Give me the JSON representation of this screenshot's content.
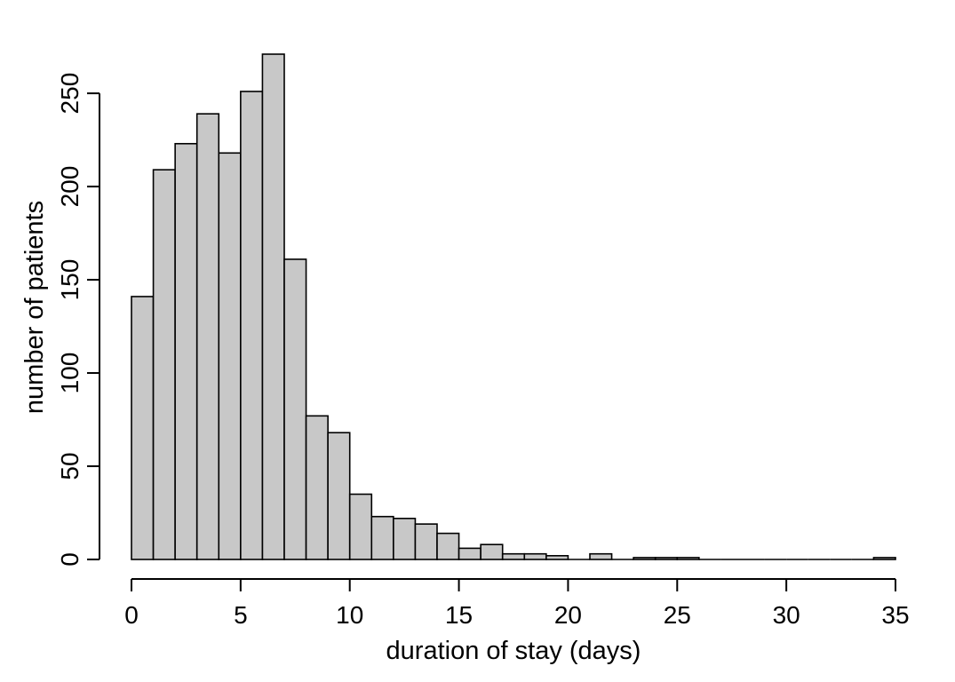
{
  "chart_data": {
    "type": "bar",
    "title": "",
    "xlabel": "duration of stay (days)",
    "ylabel": "number of patients",
    "bin_width": 1,
    "bin_starts": [
      0,
      1,
      2,
      3,
      4,
      5,
      6,
      7,
      8,
      9,
      10,
      11,
      12,
      13,
      14,
      15,
      16,
      17,
      18,
      19,
      20,
      21,
      22,
      23,
      24,
      25,
      26,
      27,
      28,
      29,
      30,
      31,
      32,
      33,
      34
    ],
    "values": [
      141,
      209,
      223,
      239,
      218,
      251,
      271,
      161,
      77,
      68,
      35,
      23,
      22,
      19,
      14,
      6,
      8,
      3,
      3,
      2,
      0,
      3,
      0,
      1,
      1,
      1,
      0,
      0,
      0,
      0,
      0,
      0,
      0,
      0,
      1
    ],
    "xlim": [
      0,
      35
    ],
    "ylim": [
      0,
      271
    ],
    "x_ticks": [
      0,
      5,
      10,
      15,
      20,
      25,
      30,
      35
    ],
    "x_tick_labels": [
      "0",
      "5",
      "10",
      "15",
      "20",
      "25",
      "30",
      "35"
    ],
    "y_ticks": [
      0,
      50,
      100,
      150,
      200,
      250
    ],
    "y_tick_labels": [
      "0",
      "50",
      "100",
      "150",
      "200",
      "250"
    ],
    "bar_color": "#c8c8c8",
    "edge_color": "#000000",
    "grid": false,
    "legend": "none"
  }
}
